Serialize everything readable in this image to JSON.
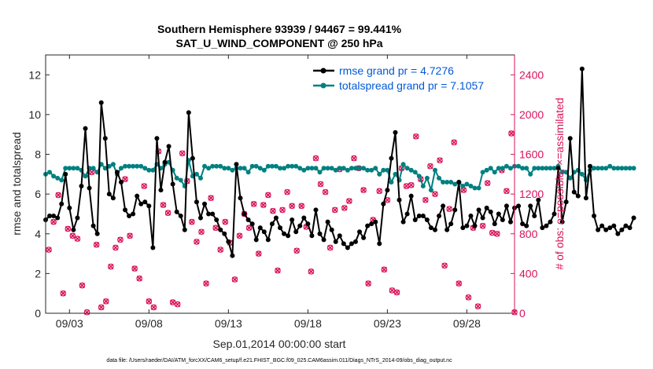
{
  "chart_data": {
    "type": "line",
    "title_line1": "Southern Hemisphere 93939 / 94467 = 99.441%",
    "title_line2": "SAT_U_WIND_COMPONENT @ 250 hPa",
    "xlabel": "Sep.01,2014 00:00:00 start",
    "ylabel_left": "rmse and totalspread",
    "ylabel_right": "# of obs: o=possible; ×=assimilated",
    "footer": "data file: /Users/raeder/DAI/ATM_forcXX/CAM6_setup/f.e21.FHIST_BGC.f09_025.CAM6assim.011/Diags_NTrS_2014-09/obs_diag_output.nc",
    "x_tick_labels": [
      "09/03",
      "09/08",
      "09/13",
      "09/18",
      "09/23",
      "09/28"
    ],
    "x_tick_days": [
      3,
      8,
      13,
      18,
      23,
      28
    ],
    "xlim": [
      1.5,
      31
    ],
    "ylim_left": [
      0,
      13
    ],
    "y_ticks_left": [
      "0",
      "2",
      "4",
      "6",
      "8",
      "10",
      "12"
    ],
    "ylim_right": [
      0,
      2600
    ],
    "y_ticks_right": [
      "0",
      "400",
      "800",
      "1200",
      "1600",
      "2000",
      "2400"
    ],
    "colors": {
      "rmse": "#000000",
      "spread": "#008080",
      "obs": "#d8135a",
      "legend_text": "#0058d8",
      "right_axis": "#d8135a"
    },
    "x_step": 0.25,
    "x_start": 1.5,
    "series": [
      {
        "name": "rmse",
        "legend": "rmse grand pr = 4.7276",
        "values": [
          4.7,
          4.9,
          4.9,
          4.8,
          5.5,
          7.0,
          5.3,
          4.2,
          4.8,
          6.4,
          9.3,
          6.3,
          4.4,
          4.0,
          10.6,
          8.8,
          6.0,
          5.8,
          7.1,
          6.6,
          5.2,
          4.9,
          5.0,
          5.9,
          5.5,
          5.6,
          5.4,
          3.3,
          8.8,
          6.2,
          7.6,
          8.4,
          6.5,
          5.1,
          4.9,
          4.2,
          10.1,
          7.8,
          5.6,
          4.8,
          5.5,
          5.0,
          5.0,
          4.7,
          4.2,
          4.0,
          3.6,
          2.9,
          7.5,
          5.8,
          5.0,
          4.7,
          4.5,
          3.7,
          4.3,
          4.1,
          3.7,
          4.5,
          4.8,
          4.3,
          4.0,
          3.9,
          4.7,
          4.1,
          4.4,
          4.8,
          4.5,
          3.9,
          5.2,
          4.0,
          3.7,
          4.6,
          4.2,
          3.6,
          3.9,
          3.5,
          3.3,
          3.5,
          3.6,
          4.1,
          3.8,
          4.4,
          4.5,
          4.6,
          3.5,
          5.5,
          6.2,
          7.8,
          9.1,
          5.7,
          4.6,
          5.0,
          5.9,
          4.7,
          4.9,
          4.9,
          4.7,
          4.3,
          4.2,
          4.9,
          5.4,
          4.2,
          4.5,
          5.2,
          6.6,
          4.3,
          4.4,
          4.9,
          4.4,
          5.2,
          4.8,
          5.3,
          5.1,
          4.5,
          5.0,
          4.7,
          5.4,
          4.6,
          5.3,
          5.4,
          4.5,
          4.4,
          5.4,
          4.9,
          5.7,
          4.3,
          4.4,
          4.6,
          5.0,
          7.3,
          4.6,
          5.6,
          8.8,
          6.1,
          5.9,
          12.3,
          5.8,
          7.4,
          4.9,
          4.2,
          4.4,
          4.2,
          4.3,
          4.4,
          4.0,
          4.2,
          4.4,
          4.3,
          4.8
        ]
      },
      {
        "name": "totalspread",
        "legend": "totalspread grand pr = 7.1057",
        "values": [
          7.0,
          7.1,
          6.9,
          6.8,
          6.7,
          7.3,
          7.3,
          7.3,
          7.3,
          7.2,
          6.9,
          7.3,
          7.3,
          7.1,
          7.5,
          7.3,
          7.4,
          7.5,
          7.0,
          7.3,
          7.4,
          7.4,
          7.4,
          7.4,
          7.4,
          7.3,
          7.2,
          7.2,
          7.5,
          7.3,
          7.5,
          7.6,
          7.2,
          6.8,
          6.7,
          6.4,
          7.7,
          6.9,
          7.0,
          6.8,
          7.4,
          7.3,
          7.4,
          7.4,
          7.4,
          7.3,
          7.3,
          7.2,
          7.3,
          7.3,
          7.3,
          7.1,
          7.4,
          7.4,
          7.3,
          7.2,
          7.4,
          7.4,
          7.4,
          7.3,
          7.3,
          7.4,
          7.4,
          7.4,
          7.3,
          7.2,
          7.3,
          7.3,
          7.3,
          7.1,
          7.3,
          7.3,
          7.3,
          7.2,
          7.3,
          7.3,
          7.2,
          7.3,
          7.3,
          7.3,
          7.3,
          7.2,
          7.2,
          7.3,
          7.0,
          7.2,
          7.2,
          6.6,
          7.0,
          6.7,
          7.5,
          7.3,
          7.2,
          7.1,
          6.9,
          6.4,
          6.8,
          6.2,
          7.2,
          6.8,
          6.6,
          6.6,
          6.6,
          6.5,
          6.6,
          6.4,
          6.5,
          6.4,
          6.3,
          6.3,
          7.1,
          7.2,
          7.3,
          7.1,
          7.3,
          7.3,
          7.4,
          7.3,
          7.4,
          7.4,
          7.3,
          7.3,
          7.0,
          7.3,
          7.3,
          7.3,
          7.3,
          7.3,
          7.3,
          7.4,
          7.1,
          7.1,
          6.8,
          7.1,
          7.2,
          7.0,
          6.7,
          7.2,
          7.3,
          7.3,
          7.3,
          7.3,
          7.4,
          7.3,
          7.3,
          7.3,
          7.3,
          7.3,
          7.3
        ]
      }
    ],
    "obs_points": [
      [
        1.7,
        640
      ],
      [
        2.0,
        920
      ],
      [
        2.3,
        1190
      ],
      [
        2.6,
        200
      ],
      [
        2.9,
        850
      ],
      [
        3.2,
        780
      ],
      [
        3.5,
        750
      ],
      [
        3.8,
        280
      ],
      [
        4.1,
        10
      ],
      [
        4.4,
        1420
      ],
      [
        4.7,
        690
      ],
      [
        5.0,
        60
      ],
      [
        5.3,
        120
      ],
      [
        5.6,
        470
      ],
      [
        5.9,
        660
      ],
      [
        6.2,
        740
      ],
      [
        6.5,
        1350
      ],
      [
        6.8,
        780
      ],
      [
        7.1,
        450
      ],
      [
        7.4,
        350
      ],
      [
        7.7,
        1280
      ],
      [
        8.0,
        120
      ],
      [
        8.3,
        60
      ],
      [
        8.6,
        1630
      ],
      [
        8.9,
        1090
      ],
      [
        9.2,
        1010
      ],
      [
        9.5,
        110
      ],
      [
        9.8,
        90
      ],
      [
        10.1,
        1610
      ],
      [
        10.4,
        1330
      ],
      [
        10.7,
        920
      ],
      [
        11.0,
        720
      ],
      [
        11.3,
        820
      ],
      [
        11.6,
        300
      ],
      [
        11.9,
        1160
      ],
      [
        12.2,
        860
      ],
      [
        12.5,
        640
      ],
      [
        12.8,
        920
      ],
      [
        13.1,
        710
      ],
      [
        13.4,
        340
      ],
      [
        13.7,
        780
      ],
      [
        14.0,
        1000
      ],
      [
        14.3,
        860
      ],
      [
        14.6,
        1100
      ],
      [
        14.9,
        600
      ],
      [
        15.2,
        1090
      ],
      [
        15.5,
        1190
      ],
      [
        15.8,
        1030
      ],
      [
        16.1,
        430
      ],
      [
        16.4,
        1040
      ],
      [
        16.7,
        1220
      ],
      [
        17.0,
        1080
      ],
      [
        17.3,
        630
      ],
      [
        17.6,
        1080
      ],
      [
        17.9,
        870
      ],
      [
        18.2,
        420
      ],
      [
        18.5,
        1560
      ],
      [
        18.8,
        1300
      ],
      [
        19.1,
        1220
      ],
      [
        19.4,
        660
      ],
      [
        19.7,
        1040
      ],
      [
        20.0,
        1450
      ],
      [
        20.3,
        1060
      ],
      [
        20.6,
        1130
      ],
      [
        20.9,
        1560
      ],
      [
        21.2,
        1460
      ],
      [
        21.5,
        1240
      ],
      [
        21.8,
        300
      ],
      [
        22.1,
        940
      ],
      [
        22.5,
        1230
      ],
      [
        22.8,
        440
      ],
      [
        23.0,
        1140
      ],
      [
        23.3,
        230
      ],
      [
        23.6,
        210
      ],
      [
        23.9,
        1460
      ],
      [
        24.2,
        1280
      ],
      [
        24.5,
        1290
      ],
      [
        24.8,
        1780
      ],
      [
        25.1,
        1350
      ],
      [
        25.4,
        1140
      ],
      [
        25.7,
        1480
      ],
      [
        26.0,
        1200
      ],
      [
        26.3,
        1540
      ],
      [
        26.6,
        480
      ],
      [
        26.9,
        1050
      ],
      [
        27.2,
        1720
      ],
      [
        27.5,
        300
      ],
      [
        27.8,
        1240
      ],
      [
        28.1,
        160
      ],
      [
        28.4,
        860
      ],
      [
        28.7,
        70
      ],
      [
        29.0,
        880
      ],
      [
        29.3,
        1310
      ],
      [
        29.6,
        810
      ],
      [
        29.9,
        800
      ],
      [
        30.2,
        1440
      ],
      [
        30.5,
        1230
      ],
      [
        30.8,
        1810
      ],
      [
        31.0,
        10
      ]
    ]
  }
}
